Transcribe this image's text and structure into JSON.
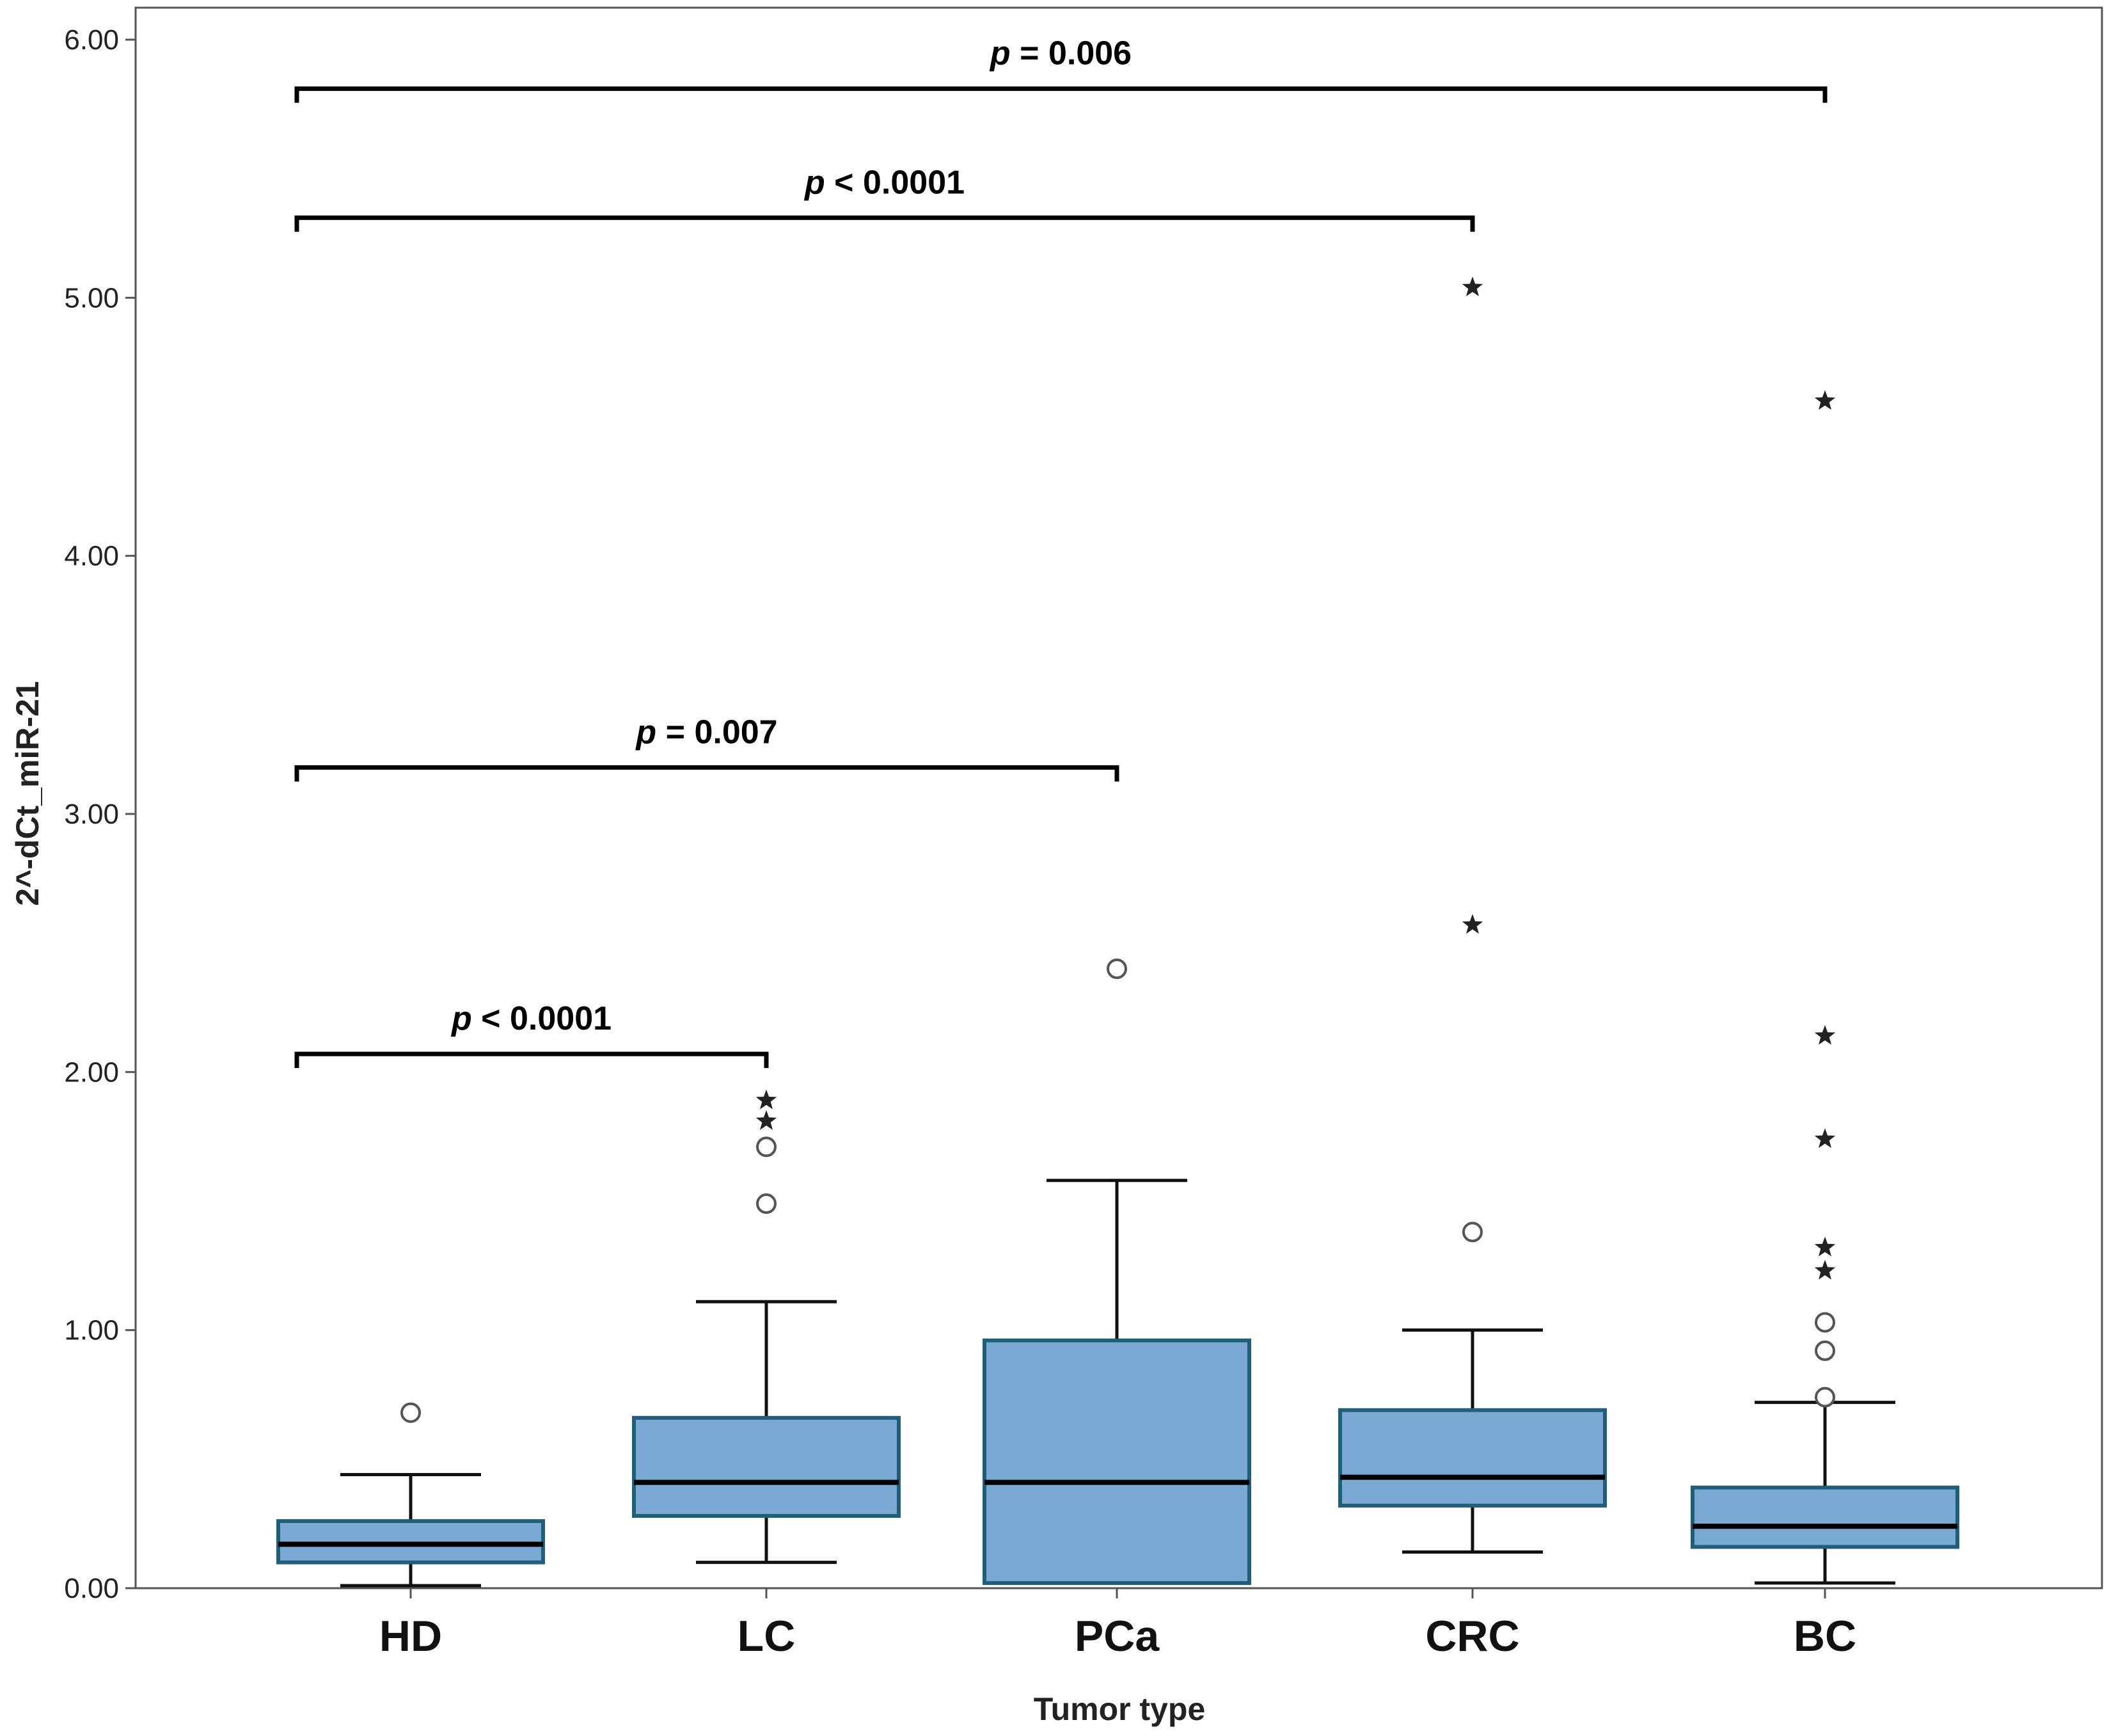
{
  "chart_data": {
    "type": "box",
    "title": "",
    "xlabel": "Tumor type",
    "ylabel": "2^-dCt_miR-21",
    "ylim": [
      0,
      6.2
    ],
    "yticks": [
      0,
      1,
      2,
      3,
      4,
      5,
      6
    ],
    "ytick_labels": [
      "0.00",
      "1.00",
      "2.00",
      "3.00",
      "4.00",
      "5.00",
      "6.00"
    ],
    "categories": [
      "HD",
      "LC",
      "PCa",
      "CRC",
      "BC"
    ],
    "box_color": "#7aaad4",
    "box_edge_color": "#1f5f7a",
    "boxes": [
      {
        "label": "HD",
        "whisker_low": 0.01,
        "q1": 0.1,
        "median": 0.17,
        "q3": 0.26,
        "whisker_high": 0.44,
        "outliers": [
          {
            "value": 0.68,
            "marker": "circle"
          }
        ]
      },
      {
        "label": "LC",
        "whisker_low": 0.1,
        "q1": 0.28,
        "median": 0.41,
        "q3": 0.66,
        "whisker_high": 1.11,
        "outliers": [
          {
            "value": 1.49,
            "marker": "circle"
          },
          {
            "value": 1.71,
            "marker": "circle"
          },
          {
            "value": 1.81,
            "marker": "star"
          },
          {
            "value": 1.89,
            "marker": "star"
          }
        ]
      },
      {
        "label": "PCa",
        "whisker_low": 0.02,
        "q1": 0.02,
        "median": 0.41,
        "q3": 0.96,
        "whisker_high": 1.58,
        "outliers": [
          {
            "value": 2.4,
            "marker": "circle"
          }
        ]
      },
      {
        "label": "CRC",
        "whisker_low": 0.14,
        "q1": 0.32,
        "median": 0.43,
        "q3": 0.69,
        "whisker_high": 1.0,
        "outliers": [
          {
            "value": 1.38,
            "marker": "circle"
          },
          {
            "value": 2.57,
            "marker": "star"
          },
          {
            "value": 5.04,
            "marker": "star"
          }
        ]
      },
      {
        "label": "BC",
        "whisker_low": 0.02,
        "q1": 0.16,
        "median": 0.24,
        "q3": 0.39,
        "whisker_high": 0.72,
        "outliers": [
          {
            "value": 0.74,
            "marker": "circle"
          },
          {
            "value": 0.92,
            "marker": "circle"
          },
          {
            "value": 1.03,
            "marker": "circle"
          },
          {
            "value": 1.23,
            "marker": "star"
          },
          {
            "value": 1.32,
            "marker": "star"
          },
          {
            "value": 1.74,
            "marker": "star"
          },
          {
            "value": 2.14,
            "marker": "star"
          },
          {
            "value": 4.6,
            "marker": "star"
          }
        ]
      }
    ],
    "comparisons": [
      {
        "from": "HD",
        "to": "LC",
        "y": 2.07,
        "p_symbol": "p",
        "p_text": " < 0.0001"
      },
      {
        "from": "HD",
        "to": "PCa",
        "y": 3.18,
        "p_symbol": "p",
        "p_text": " = 0.007"
      },
      {
        "from": "HD",
        "to": "CRC",
        "y": 5.31,
        "p_symbol": "p",
        "p_text": " < 0.0001"
      },
      {
        "from": "HD",
        "to": "BC",
        "y": 5.81,
        "p_symbol": "p",
        "p_text": " = 0.006"
      }
    ]
  }
}
